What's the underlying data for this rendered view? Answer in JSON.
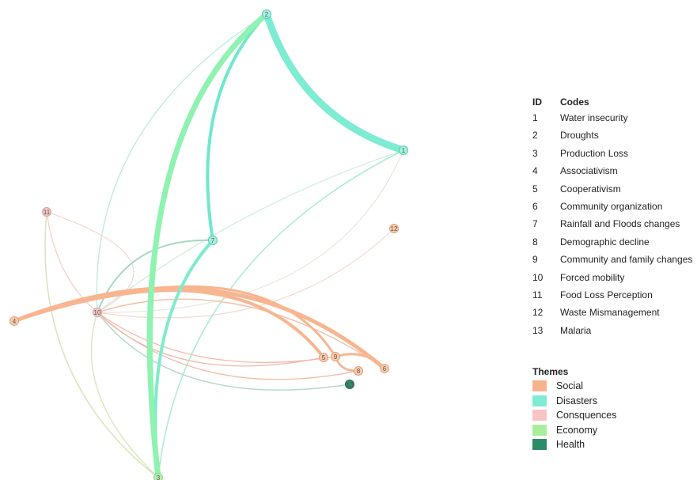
{
  "legend": {
    "codes_header": {
      "id": "ID",
      "code": "Codes"
    },
    "codes": [
      {
        "id": "1",
        "label": "Water insecurity"
      },
      {
        "id": "2",
        "label": "Droughts"
      },
      {
        "id": "3",
        "label": "Production Loss"
      },
      {
        "id": "4",
        "label": "Associativism"
      },
      {
        "id": "5",
        "label": "Cooperativism"
      },
      {
        "id": "6",
        "label": "Community organization"
      },
      {
        "id": "7",
        "label": "Rainfall and Floods changes"
      },
      {
        "id": "8",
        "label": "Demographic decline"
      },
      {
        "id": "9",
        "label": "Community and family changes"
      },
      {
        "id": "10",
        "label": "Forced mobility"
      },
      {
        "id": "11",
        "label": "Food Loss Perception"
      },
      {
        "id": "12",
        "label": "Waste Mismanagement"
      },
      {
        "id": "13",
        "label": "Malaria"
      }
    ],
    "themes_title": "Themes",
    "themes": [
      {
        "label": "Social",
        "color": "#f7b48c"
      },
      {
        "label": "Disasters",
        "color": "#7eebd3"
      },
      {
        "label": "Consquences",
        "color": "#f7c4c4"
      },
      {
        "label": "Economy",
        "color": "#a8ee9c"
      },
      {
        "label": "Health",
        "color": "#2e8b67"
      }
    ]
  },
  "network": {
    "nodes": [
      {
        "id": "1",
        "theme": "Disasters"
      },
      {
        "id": "2",
        "theme": "Disasters"
      },
      {
        "id": "3",
        "theme": "Economy"
      },
      {
        "id": "4",
        "theme": "Social"
      },
      {
        "id": "5",
        "theme": "Social"
      },
      {
        "id": "6",
        "theme": "Social"
      },
      {
        "id": "7",
        "theme": "Disasters"
      },
      {
        "id": "8",
        "theme": "Social"
      },
      {
        "id": "9",
        "theme": "Social"
      },
      {
        "id": "10",
        "theme": "Consquences"
      },
      {
        "id": "11",
        "theme": "Consquences"
      },
      {
        "id": "12",
        "theme": "Social"
      },
      {
        "id": "13",
        "theme": "Health"
      }
    ]
  }
}
